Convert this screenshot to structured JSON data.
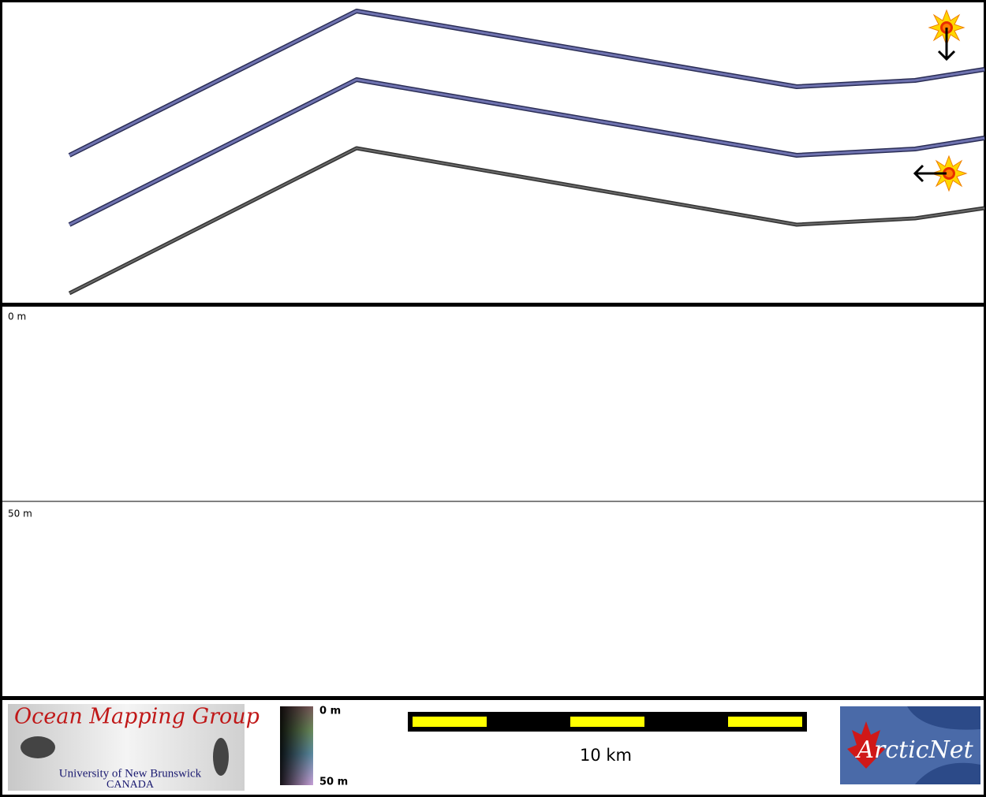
{
  "depth_panel": {
    "labels": [
      "0 m",
      "50 m"
    ]
  },
  "footer": {
    "omg_logo": {
      "title": "Ocean Mapping Group",
      "university": "University of New Brunswick",
      "country": "CANADA"
    },
    "color_scale": {
      "top": "0 m",
      "bottom": "50 m"
    },
    "scale_bar": {
      "label": "10 km"
    },
    "arcticnet_logo": {
      "text": "ArcticNet"
    }
  }
}
